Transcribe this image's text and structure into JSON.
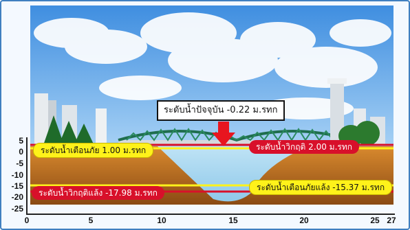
{
  "current_level": {
    "label": "ระดับน้ำปัจจุบัน -0.22 ม.รทก",
    "value": -0.22
  },
  "levels": {
    "flood_warning": {
      "label": "ระดับน้ำเตือนภัย 1.00 ม.รทก",
      "value": 1.0,
      "color": "#fff21a"
    },
    "flood_critical": {
      "label": "ระดับน้ำวิกฤติ 2.00 ม.รทก",
      "value": 2.0,
      "color": "#d8102a"
    },
    "drought_warning": {
      "label": "ระดับน้ำเตือนภัยแล้ง -15.37 ม.รทก",
      "value": -15.37,
      "color": "#fff21a"
    },
    "drought_critical": {
      "label": "ระดับน้ำวิกฤติแล้ง -17.98 ม.รทก",
      "value": -17.98,
      "color": "#d8102a"
    }
  },
  "axes": {
    "y_ticks": [
      "5",
      "0",
      "-5",
      "-10",
      "-15",
      "-20",
      "-25"
    ],
    "x_ticks": [
      "0",
      "5",
      "10",
      "15",
      "20",
      "25",
      "27"
    ]
  },
  "colors": {
    "soil": "#c9731f",
    "water": "#a9d8f0",
    "sky": "#5b9fe0"
  }
}
